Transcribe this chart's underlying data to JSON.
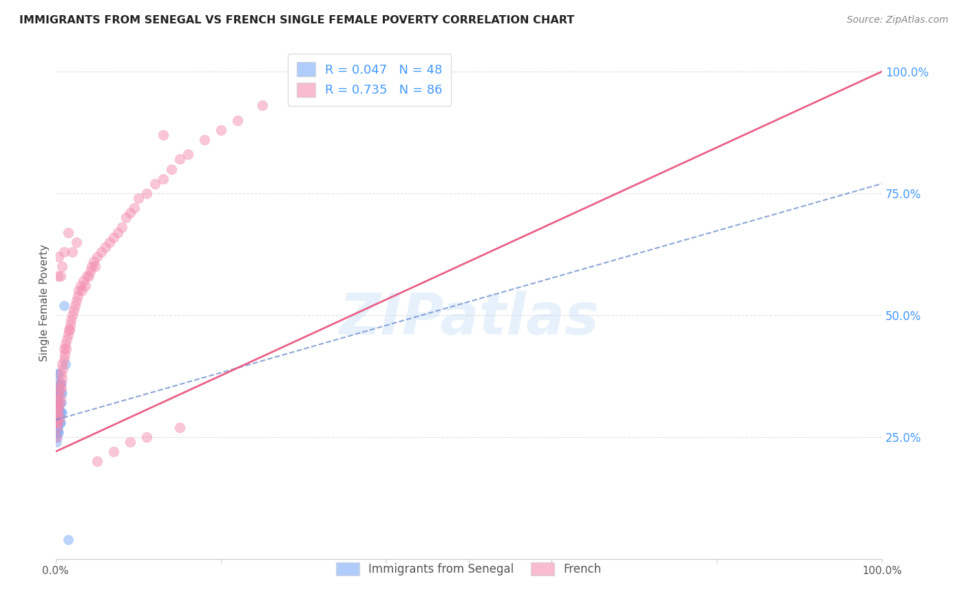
{
  "title": "IMMIGRANTS FROM SENEGAL VS FRENCH SINGLE FEMALE POVERTY CORRELATION CHART",
  "source": "Source: ZipAtlas.com",
  "ylabel": "Single Female Poverty",
  "watermark": "ZIPatlas",
  "legend_label1": "Immigrants from Senegal",
  "legend_label2": "French",
  "r1": 0.047,
  "n1": 48,
  "r2": 0.735,
  "n2": 86,
  "title_color": "#222222",
  "source_color": "#888888",
  "blue_color": "#7baaf7",
  "pink_color": "#f48fb1",
  "blue_line_color": "#6688cc",
  "pink_line_color": "#e8507a",
  "right_axis_color": "#4499ff",
  "watermark_color": "#c5ddf8",
  "yticks_right": [
    "100.0%",
    "75.0%",
    "50.0%",
    "25.0%"
  ],
  "yticks_right_vals": [
    1.0,
    0.75,
    0.5,
    0.25
  ],
  "blue_points_x": [
    0.001,
    0.001,
    0.001,
    0.001,
    0.001,
    0.001,
    0.001,
    0.001,
    0.001,
    0.001,
    0.002,
    0.002,
    0.002,
    0.002,
    0.002,
    0.002,
    0.002,
    0.002,
    0.002,
    0.002,
    0.003,
    0.003,
    0.003,
    0.003,
    0.003,
    0.003,
    0.003,
    0.003,
    0.004,
    0.004,
    0.004,
    0.004,
    0.004,
    0.004,
    0.005,
    0.005,
    0.005,
    0.005,
    0.006,
    0.006,
    0.006,
    0.007,
    0.007,
    0.008,
    0.008,
    0.01,
    0.012,
    0.015
  ],
  "blue_points_y": [
    0.28,
    0.3,
    0.32,
    0.27,
    0.35,
    0.31,
    0.29,
    0.33,
    0.26,
    0.24,
    0.3,
    0.28,
    0.32,
    0.27,
    0.34,
    0.29,
    0.31,
    0.25,
    0.36,
    0.38,
    0.29,
    0.31,
    0.33,
    0.27,
    0.35,
    0.3,
    0.28,
    0.26,
    0.32,
    0.3,
    0.28,
    0.34,
    0.26,
    0.38,
    0.3,
    0.32,
    0.28,
    0.36,
    0.34,
    0.3,
    0.28,
    0.32,
    0.36,
    0.3,
    0.34,
    0.52,
    0.4,
    0.04
  ],
  "pink_points_x": [
    0.001,
    0.001,
    0.001,
    0.002,
    0.002,
    0.002,
    0.002,
    0.003,
    0.003,
    0.003,
    0.004,
    0.004,
    0.005,
    0.005,
    0.005,
    0.006,
    0.006,
    0.007,
    0.007,
    0.008,
    0.008,
    0.009,
    0.01,
    0.01,
    0.011,
    0.012,
    0.013,
    0.014,
    0.015,
    0.016,
    0.017,
    0.018,
    0.019,
    0.02,
    0.022,
    0.024,
    0.025,
    0.027,
    0.028,
    0.03,
    0.032,
    0.034,
    0.036,
    0.038,
    0.04,
    0.042,
    0.044,
    0.046,
    0.048,
    0.05,
    0.055,
    0.06,
    0.065,
    0.07,
    0.075,
    0.08,
    0.085,
    0.09,
    0.095,
    0.1,
    0.11,
    0.12,
    0.13,
    0.14,
    0.15,
    0.16,
    0.18,
    0.2,
    0.22,
    0.25,
    0.003,
    0.004,
    0.006,
    0.008,
    0.01,
    0.015,
    0.02,
    0.025,
    0.35,
    0.38,
    0.05,
    0.07,
    0.09,
    0.11,
    0.13,
    0.15
  ],
  "pink_points_y": [
    0.28,
    0.3,
    0.25,
    0.29,
    0.31,
    0.27,
    0.33,
    0.3,
    0.32,
    0.28,
    0.31,
    0.34,
    0.32,
    0.35,
    0.29,
    0.33,
    0.36,
    0.35,
    0.38,
    0.37,
    0.4,
    0.39,
    0.41,
    0.43,
    0.42,
    0.44,
    0.43,
    0.45,
    0.46,
    0.47,
    0.47,
    0.48,
    0.49,
    0.5,
    0.51,
    0.52,
    0.53,
    0.54,
    0.55,
    0.56,
    0.55,
    0.57,
    0.56,
    0.58,
    0.58,
    0.59,
    0.6,
    0.61,
    0.6,
    0.62,
    0.63,
    0.64,
    0.65,
    0.66,
    0.67,
    0.68,
    0.7,
    0.71,
    0.72,
    0.74,
    0.75,
    0.77,
    0.78,
    0.8,
    0.82,
    0.83,
    0.86,
    0.88,
    0.9,
    0.93,
    0.58,
    0.62,
    0.58,
    0.6,
    0.63,
    0.67,
    0.63,
    0.65,
    0.97,
    0.95,
    0.2,
    0.22,
    0.24,
    0.25,
    0.87,
    0.27
  ],
  "xlim": [
    0.0,
    1.0
  ],
  "ylim": [
    0.0,
    1.05
  ],
  "pink_line_x": [
    0.0,
    1.0
  ],
  "pink_line_y": [
    0.22,
    1.0
  ],
  "blue_line_x": [
    0.0,
    1.0
  ],
  "blue_line_y": [
    0.285,
    0.77
  ]
}
